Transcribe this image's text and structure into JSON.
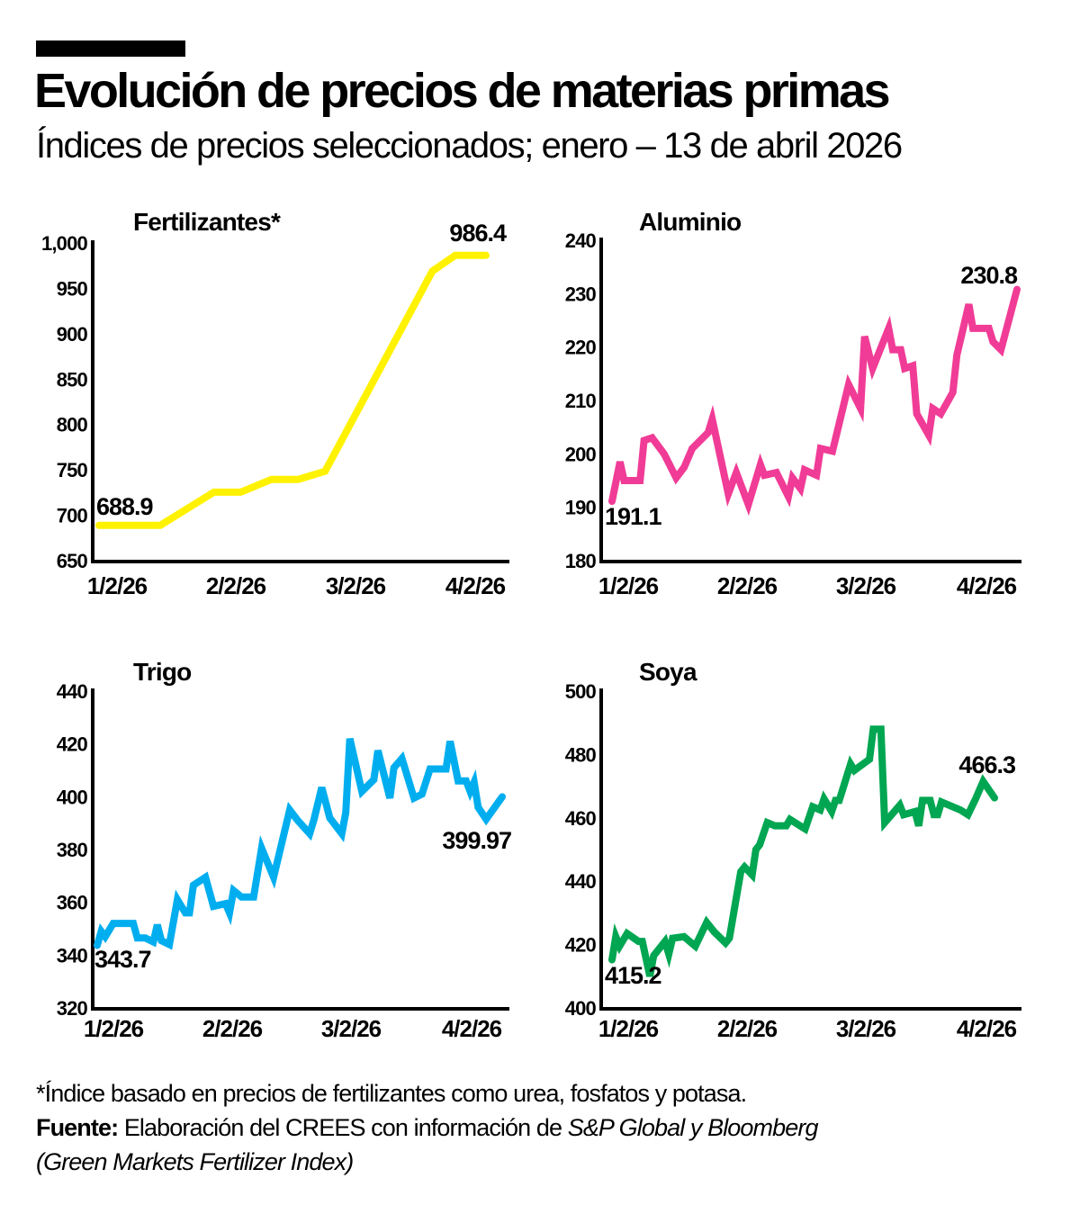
{
  "header": {
    "title": "Evolución de precios de materias primas",
    "subtitle": "Índices de precios seleccionados; enero – 13 de abril 2026"
  },
  "footer": {
    "note": "*Índice basado en precios de fertilizantes como urea, fosfatos y potasa.",
    "source_label": "Fuente:",
    "source_text": "Elaboración del CREES con información de",
    "source_italic": "S&P Global y Bloomberg",
    "source_line2": "(Green Markets Fertilizer Index)"
  },
  "chart_data": [
    {
      "type": "line",
      "title": "Fertilizantes*",
      "color": "#FFF200",
      "ylim": [
        650,
        1000
      ],
      "yticks": [
        "650",
        "700",
        "750",
        "800",
        "850",
        "900",
        "950",
        "1,000"
      ],
      "ytick_values": [
        650,
        700,
        750,
        800,
        850,
        900,
        950,
        1000
      ],
      "xticks": [
        "1/2/26",
        "2/2/26",
        "3/2/26",
        "4/2/26"
      ],
      "grid": false,
      "first_label": "688.9",
      "last_label": "986.4",
      "points": [
        [
          "2026-01-02",
          688.9
        ],
        [
          "2026-01-18",
          688.9
        ],
        [
          "2026-02-01",
          725.5
        ],
        [
          "2026-02-08",
          725.5
        ],
        [
          "2026-02-16",
          739.5
        ],
        [
          "2026-02-23",
          739.5
        ],
        [
          "2026-03-02",
          748.5
        ],
        [
          "2026-03-30",
          969
        ],
        [
          "2026-04-05",
          986.4
        ],
        [
          "2026-04-13",
          986.4
        ]
      ]
    },
    {
      "type": "line",
      "title": "Aluminio",
      "color": "#F03C96",
      "ylim": [
        180,
        240
      ],
      "yticks": [
        "180",
        "190",
        "200",
        "210",
        "220",
        "230",
        "240"
      ],
      "ytick_values": [
        180,
        190,
        200,
        210,
        220,
        230,
        240
      ],
      "xticks": [
        "1/2/26",
        "2/2/26",
        "3/2/26",
        "4/2/26"
      ],
      "grid": false,
      "first_label": "191.1",
      "last_label": "230.8",
      "points": [
        [
          "2026-01-02",
          191.1
        ],
        [
          "2026-01-04",
          198.5
        ],
        [
          "2026-01-05",
          195
        ],
        [
          "2026-01-09",
          195
        ],
        [
          "2026-01-10",
          202.5
        ],
        [
          "2026-01-12",
          203
        ],
        [
          "2026-01-15",
          200
        ],
        [
          "2026-01-18",
          195.5
        ],
        [
          "2026-01-20",
          197.5
        ],
        [
          "2026-01-22",
          201
        ],
        [
          "2026-01-26",
          204
        ],
        [
          "2026-01-27",
          206.5
        ],
        [
          "2026-01-31",
          192.5
        ],
        [
          "2026-02-02",
          196.5
        ],
        [
          "2026-02-05",
          190.5
        ],
        [
          "2026-02-08",
          198
        ],
        [
          "2026-02-09",
          196
        ],
        [
          "2026-02-12",
          196.5
        ],
        [
          "2026-02-15",
          192
        ],
        [
          "2026-02-16",
          195.5
        ],
        [
          "2026-02-18",
          193.5
        ],
        [
          "2026-02-19",
          197
        ],
        [
          "2026-02-22",
          196
        ],
        [
          "2026-02-23",
          201
        ],
        [
          "2026-02-26",
          200.5
        ],
        [
          "2026-03-02",
          213
        ],
        [
          "2026-03-05",
          208.5
        ],
        [
          "2026-03-06",
          222
        ],
        [
          "2026-03-08",
          216
        ],
        [
          "2026-03-12",
          223.5
        ],
        [
          "2026-03-13",
          219.5
        ],
        [
          "2026-03-15",
          219.5
        ],
        [
          "2026-03-16",
          216
        ],
        [
          "2026-03-18",
          216.5
        ],
        [
          "2026-03-19",
          207.5
        ],
        [
          "2026-03-22",
          203.5
        ],
        [
          "2026-03-23",
          208.5
        ],
        [
          "2026-03-25",
          207.5
        ],
        [
          "2026-03-28",
          211.5
        ],
        [
          "2026-03-29",
          218.5
        ],
        [
          "2026-04-01",
          228
        ],
        [
          "2026-04-02",
          223.5
        ],
        [
          "2026-04-06",
          223.5
        ],
        [
          "2026-04-07",
          221
        ],
        [
          "2026-04-09",
          219.5
        ],
        [
          "2026-04-13",
          230.8
        ]
      ]
    },
    {
      "type": "line",
      "title": "Trigo",
      "color": "#00AEEF",
      "ylim": [
        320,
        440
      ],
      "yticks": [
        "320",
        "340",
        "360",
        "380",
        "400",
        "420",
        "440"
      ],
      "ytick_values": [
        320,
        340,
        360,
        380,
        400,
        420,
        440
      ],
      "xticks": [
        "1/2/26",
        "2/2/26",
        "3/2/26",
        "4/2/26"
      ],
      "grid": false,
      "first_label": "343.7",
      "last_label": "399.97",
      "points": [
        [
          "2026-01-02",
          343.7
        ],
        [
          "2026-01-03",
          349
        ],
        [
          "2026-01-04",
          347
        ],
        [
          "2026-01-06",
          352
        ],
        [
          "2026-01-11",
          352
        ],
        [
          "2026-01-12",
          346.5
        ],
        [
          "2026-01-14",
          346.5
        ],
        [
          "2026-01-16",
          345
        ],
        [
          "2026-01-17",
          351.5
        ],
        [
          "2026-01-18",
          345.5
        ],
        [
          "2026-01-20",
          344
        ],
        [
          "2026-01-22",
          361
        ],
        [
          "2026-01-24",
          356
        ],
        [
          "2026-01-25",
          356
        ],
        [
          "2026-01-26",
          366.5
        ],
        [
          "2026-01-29",
          369.5
        ],
        [
          "2026-01-31",
          358.5
        ],
        [
          "2026-02-03",
          359.5
        ],
        [
          "2026-02-04",
          356
        ],
        [
          "2026-02-05",
          364.5
        ],
        [
          "2026-02-07",
          362
        ],
        [
          "2026-02-10",
          362
        ],
        [
          "2026-02-12",
          380.5
        ],
        [
          "2026-02-15",
          369.5
        ],
        [
          "2026-02-19",
          395
        ],
        [
          "2026-02-21",
          391
        ],
        [
          "2026-02-24",
          386
        ],
        [
          "2026-02-25",
          391
        ],
        [
          "2026-02-27",
          403.5
        ],
        [
          "2026-03-01",
          392
        ],
        [
          "2026-03-04",
          386
        ],
        [
          "2026-03-05",
          394
        ],
        [
          "2026-03-06",
          422
        ],
        [
          "2026-03-09",
          402
        ],
        [
          "2026-03-12",
          406.5
        ],
        [
          "2026-03-13",
          417.5
        ],
        [
          "2026-03-16",
          399.5
        ],
        [
          "2026-03-17",
          411
        ],
        [
          "2026-03-19",
          414.5
        ],
        [
          "2026-03-22",
          399.5
        ],
        [
          "2026-03-24",
          401
        ],
        [
          "2026-03-26",
          410.5
        ],
        [
          "2026-03-30",
          410.5
        ],
        [
          "2026-03-31",
          421
        ],
        [
          "2026-04-02",
          406
        ],
        [
          "2026-04-04",
          406
        ],
        [
          "2026-04-05",
          402
        ],
        [
          "2026-04-06",
          405.5
        ],
        [
          "2026-04-07",
          396
        ],
        [
          "2026-04-09",
          391.5
        ],
        [
          "2026-04-13",
          399.97
        ]
      ]
    },
    {
      "type": "line",
      "title": "Soya",
      "color": "#00A651",
      "ylim": [
        400,
        500
      ],
      "yticks": [
        "400",
        "420",
        "440",
        "460",
        "480",
        "500"
      ],
      "ytick_values": [
        400,
        420,
        440,
        460,
        480,
        500
      ],
      "xticks": [
        "1/2/26",
        "2/2/26",
        "3/2/26",
        "4/2/26"
      ],
      "grid": false,
      "first_label": "415.2",
      "last_label": "466.3",
      "points": [
        [
          "2026-01-02",
          415.2
        ],
        [
          "2026-01-03",
          422.5
        ],
        [
          "2026-01-04",
          419.5
        ],
        [
          "2026-01-06",
          423.5
        ],
        [
          "2026-01-09",
          421
        ],
        [
          "2026-01-10",
          421
        ],
        [
          "2026-01-12",
          410
        ],
        [
          "2026-01-13",
          416.5
        ],
        [
          "2026-01-16",
          421
        ],
        [
          "2026-01-17",
          417
        ],
        [
          "2026-01-18",
          422
        ],
        [
          "2026-01-21",
          422.5
        ],
        [
          "2026-01-24",
          419.5
        ],
        [
          "2026-01-27",
          427
        ],
        [
          "2026-01-29",
          424
        ],
        [
          "2026-02-01",
          420.5
        ],
        [
          "2026-02-02",
          422
        ],
        [
          "2026-02-05",
          443
        ],
        [
          "2026-02-06",
          444.5
        ],
        [
          "2026-02-08",
          442
        ],
        [
          "2026-02-09",
          450
        ],
        [
          "2026-02-10",
          451.5
        ],
        [
          "2026-02-12",
          458.5
        ],
        [
          "2026-02-14",
          457.5
        ],
        [
          "2026-02-17",
          457.5
        ],
        [
          "2026-02-18",
          459.5
        ],
        [
          "2026-02-22",
          456.5
        ],
        [
          "2026-02-24",
          463.5
        ],
        [
          "2026-02-26",
          462.5
        ],
        [
          "2026-02-27",
          466
        ],
        [
          "2026-03-01",
          462
        ],
        [
          "2026-03-02",
          465.5
        ],
        [
          "2026-03-03",
          465.5
        ],
        [
          "2026-03-06",
          477
        ],
        [
          "2026-03-07",
          475
        ],
        [
          "2026-03-11",
          478.5
        ],
        [
          "2026-03-12",
          488
        ],
        [
          "2026-03-14",
          488
        ],
        [
          "2026-03-15",
          458.5
        ],
        [
          "2026-03-19",
          464
        ],
        [
          "2026-03-20",
          461
        ],
        [
          "2026-03-23",
          462
        ],
        [
          "2026-03-24",
          457.5
        ],
        [
          "2026-03-25",
          465.5
        ],
        [
          "2026-03-27",
          465.5
        ],
        [
          "2026-03-28",
          461
        ],
        [
          "2026-03-29",
          461
        ],
        [
          "2026-03-30",
          465
        ],
        [
          "2026-04-04",
          462.5
        ],
        [
          "2026-04-06",
          461
        ],
        [
          "2026-04-08",
          466
        ],
        [
          "2026-04-10",
          471.5
        ],
        [
          "2026-04-13",
          466.3
        ]
      ]
    }
  ]
}
